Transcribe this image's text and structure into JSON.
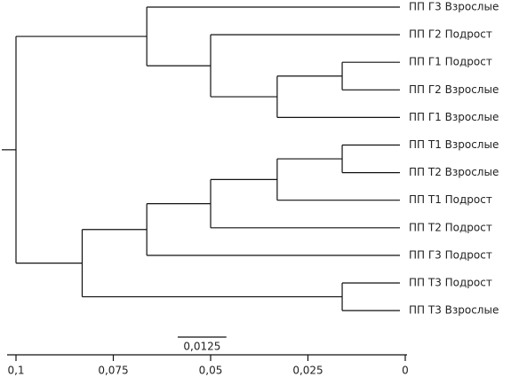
{
  "chart_data": {
    "type": "dendrogram",
    "xlim": [
      0.1,
      0
    ],
    "xticks": [
      {
        "value": 0.1,
        "label": "0,1"
      },
      {
        "value": 0.075,
        "label": "0,075"
      },
      {
        "value": 0.05,
        "label": "0,05"
      },
      {
        "value": 0.025,
        "label": "0,025"
      },
      0
    ],
    "scale_bar": {
      "value": 0.0125,
      "label": "0,0125"
    },
    "tree": {
      "height": 0.1,
      "children": [
        {
          "height": 0.0664,
          "children": [
            {
              "label": "ПП Г3 Взрослые"
            },
            {
              "height": 0.05,
              "children": [
                {
                  "label": "ПП Г2 Подрост"
                },
                {
                  "height": 0.0329,
                  "children": [
                    {
                      "height": 0.0162,
                      "children": [
                        {
                          "label": "ПП Г1 Подрост"
                        },
                        {
                          "label": "ПП Г2 Взрослые"
                        }
                      ]
                    },
                    {
                      "label": "ПП Г1 Взрослые"
                    }
                  ]
                }
              ]
            }
          ]
        },
        {
          "height": 0.083,
          "children": [
            {
              "height": 0.0664,
              "children": [
                {
                  "height": 0.05,
                  "children": [
                    {
                      "height": 0.0329,
                      "children": [
                        {
                          "height": 0.0162,
                          "children": [
                            {
                              "label": "ПП Т1 Взрослые"
                            },
                            {
                              "label": "ПП Т2 Взрослые"
                            }
                          ]
                        },
                        {
                          "label": "ПП Т1 Подрост"
                        }
                      ]
                    },
                    {
                      "label": "ПП Т2 Подрост"
                    }
                  ]
                },
                {
                  "label": "ПП Г3 Подрост"
                }
              ]
            },
            {
              "height": 0.0162,
              "children": [
                {
                  "label": "ПП Т3 Подрост"
                },
                {
                  "label": "ПП Т3 Взрослые"
                }
              ]
            }
          ]
        }
      ]
    }
  }
}
